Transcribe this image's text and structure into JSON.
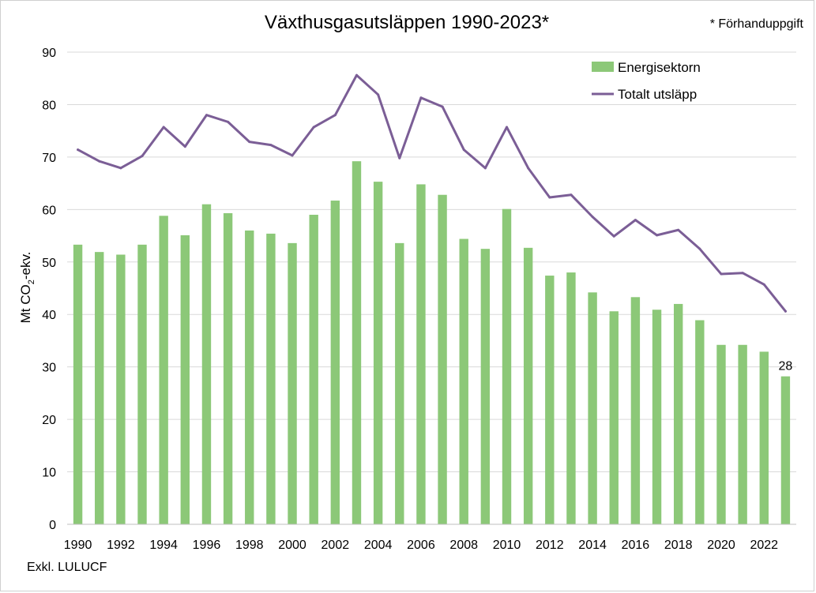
{
  "chart_data": {
    "type": "bar",
    "title": "Växthusgasutsläppen 1990-2023*",
    "note_top_right": "* Förhanduppgift",
    "footnote": "Exkl. LULUCF",
    "ylabel": {
      "main": "Mt CO",
      "sub": "2",
      "suffix": "-ekv."
    },
    "ylim": [
      0,
      90
    ],
    "y_ticks": [
      0,
      10,
      20,
      30,
      40,
      50,
      60,
      70,
      80,
      90
    ],
    "x_tick_labels": [
      "1990",
      "1992",
      "1994",
      "1996",
      "1998",
      "2000",
      "2002",
      "2004",
      "2006",
      "2008",
      "2010",
      "2012",
      "2014",
      "2016",
      "2018",
      "2020",
      "2022"
    ],
    "grid": true,
    "legend_position": "top-right",
    "categories": [
      1990,
      1991,
      1992,
      1993,
      1994,
      1995,
      1996,
      1997,
      1998,
      1999,
      2000,
      2001,
      2002,
      2003,
      2004,
      2005,
      2006,
      2007,
      2008,
      2009,
      2010,
      2011,
      2012,
      2013,
      2014,
      2015,
      2016,
      2017,
      2018,
      2019,
      2020,
      2021,
      2022,
      2023
    ],
    "series": [
      {
        "name": "Energisektorn",
        "kind": "bar",
        "color": "#8cc878",
        "values": [
          53.3,
          51.9,
          51.4,
          53.3,
          58.8,
          55.1,
          61.0,
          59.3,
          56.0,
          55.4,
          53.6,
          59.0,
          61.7,
          69.2,
          65.3,
          53.6,
          64.8,
          62.8,
          54.4,
          52.5,
          60.1,
          52.7,
          47.4,
          48.0,
          44.2,
          40.6,
          43.3,
          40.9,
          42.0,
          38.9,
          34.2,
          34.2,
          32.9,
          28.2
        ]
      },
      {
        "name": "Totalt utsläpp",
        "kind": "line",
        "color": "#7b5e96",
        "values": [
          71.4,
          69.2,
          67.9,
          70.2,
          75.7,
          72.0,
          78.0,
          76.7,
          72.9,
          72.3,
          70.3,
          75.7,
          78.0,
          85.6,
          81.9,
          69.8,
          81.3,
          79.6,
          71.4,
          67.9,
          75.7,
          67.9,
          62.3,
          62.8,
          58.6,
          54.9,
          58.0,
          55.1,
          56.1,
          52.5,
          47.7,
          47.9,
          45.7,
          40.6
        ]
      }
    ],
    "data_labels": [
      {
        "category": 2023,
        "text": "28"
      }
    ]
  }
}
